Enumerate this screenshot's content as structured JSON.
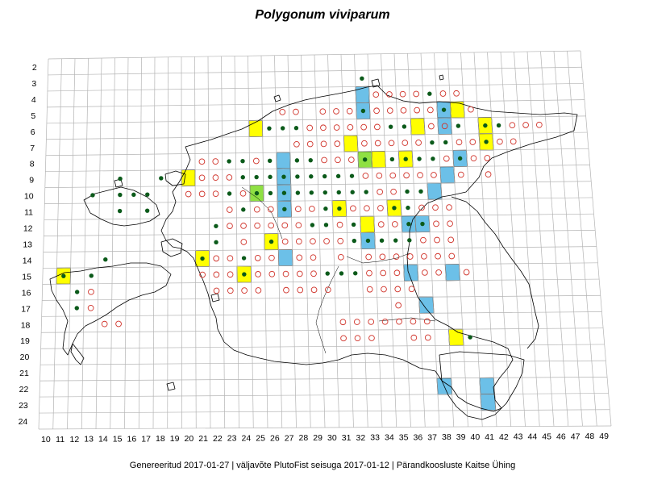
{
  "title": "Polygonum viviparum",
  "footer": "Genereeritud 2017-01-27  |  väljavõte PlutoFist seisuga 2017-01-12  |  Pärandkoosluste Kaitse Ühing",
  "colors": {
    "grid": "#b4b4b4",
    "yellow_cell": "#ffff00",
    "blue_cell": "#6cc0e8",
    "green_cell": "#8fe043",
    "filled_dot": "#0b5a1a",
    "open_circle": "#d0332a",
    "coast": "#000000"
  },
  "legend_meaning": {
    "filled_dot": "recorded",
    "open_circle": "other record"
  },
  "grid_labels": {
    "rows": [
      "2",
      "3",
      "4",
      "5",
      "6",
      "7",
      "8",
      "9",
      "10",
      "11",
      "12",
      "13",
      "14",
      "15",
      "16",
      "17",
      "18",
      "19",
      "20",
      "21",
      "22",
      "23",
      "24"
    ],
    "cols": [
      "10",
      "11",
      "12",
      "13",
      "14",
      "15",
      "16",
      "17",
      "18",
      "19",
      "20",
      "21",
      "22",
      "23",
      "24",
      "25",
      "26",
      "27",
      "28",
      "29",
      "30",
      "31",
      "32",
      "33",
      "34",
      "35",
      "36",
      "37",
      "38",
      "39",
      "40",
      "41",
      "42",
      "43",
      "44",
      "45",
      "46",
      "47",
      "48",
      "49"
    ]
  },
  "cells": {
    "yellow": [
      [
        40,
        5
      ],
      [
        25,
        6
      ],
      [
        37,
        6
      ],
      [
        42,
        6
      ],
      [
        42,
        7
      ],
      [
        32,
        7
      ],
      [
        34,
        8
      ],
      [
        36,
        8
      ],
      [
        20,
        9
      ],
      [
        31,
        11
      ],
      [
        35,
        11
      ],
      [
        33,
        12
      ],
      [
        26,
        13
      ],
      [
        21,
        14
      ],
      [
        11,
        15
      ],
      [
        24,
        15
      ],
      [
        39,
        19
      ]
    ],
    "blue": [
      [
        33,
        4
      ],
      [
        39,
        5
      ],
      [
        33,
        5
      ],
      [
        39,
        6
      ],
      [
        27,
        8
      ],
      [
        40,
        8
      ],
      [
        27,
        9
      ],
      [
        39,
        9
      ],
      [
        27,
        10
      ],
      [
        38,
        10
      ],
      [
        27,
        11
      ],
      [
        36,
        12
      ],
      [
        37,
        12
      ],
      [
        33,
        13
      ],
      [
        27,
        14
      ],
      [
        36,
        15
      ],
      [
        39,
        15
      ],
      [
        37,
        17
      ],
      [
        38,
        22
      ],
      [
        41,
        22
      ],
      [
        41,
        23
      ]
    ],
    "green": [
      [
        33,
        8
      ],
      [
        25,
        10
      ]
    ]
  },
  "filled_dots": [
    [
      33,
      3
    ],
    [
      38,
      4
    ],
    [
      33,
      5
    ],
    [
      39,
      5
    ],
    [
      28,
      6
    ],
    [
      40,
      6
    ],
    [
      42,
      6
    ],
    [
      43,
      6
    ],
    [
      35,
      6
    ],
    [
      36,
      6
    ],
    [
      26,
      6
    ],
    [
      27,
      6
    ],
    [
      42,
      7
    ],
    [
      38,
      7
    ],
    [
      39,
      7
    ],
    [
      23,
      8
    ],
    [
      24,
      8
    ],
    [
      26,
      8
    ],
    [
      28,
      8
    ],
    [
      29,
      8
    ],
    [
      33,
      8
    ],
    [
      35,
      8
    ],
    [
      36,
      8
    ],
    [
      37,
      8
    ],
    [
      38,
      8
    ],
    [
      40,
      8
    ],
    [
      15,
      9
    ],
    [
      18,
      9
    ],
    [
      24,
      9
    ],
    [
      25,
      9
    ],
    [
      26,
      9
    ],
    [
      27,
      9
    ],
    [
      28,
      9
    ],
    [
      29,
      9
    ],
    [
      30,
      9
    ],
    [
      31,
      9
    ],
    [
      32,
      9
    ],
    [
      13,
      10
    ],
    [
      15,
      10
    ],
    [
      16,
      10
    ],
    [
      17,
      10
    ],
    [
      23,
      10
    ],
    [
      25,
      10
    ],
    [
      26,
      10
    ],
    [
      27,
      10
    ],
    [
      28,
      10
    ],
    [
      29,
      10
    ],
    [
      30,
      10
    ],
    [
      31,
      10
    ],
    [
      32,
      10
    ],
    [
      33,
      10
    ],
    [
      36,
      10
    ],
    [
      37,
      10
    ],
    [
      15,
      11
    ],
    [
      17,
      11
    ],
    [
      24,
      11
    ],
    [
      27,
      11
    ],
    [
      30,
      11
    ],
    [
      31,
      11
    ],
    [
      35,
      11
    ],
    [
      36,
      11
    ],
    [
      22,
      12
    ],
    [
      29,
      12
    ],
    [
      30,
      12
    ],
    [
      32,
      12
    ],
    [
      36,
      12
    ],
    [
      37,
      12
    ],
    [
      22,
      13
    ],
    [
      26,
      13
    ],
    [
      32,
      13
    ],
    [
      33,
      13
    ],
    [
      34,
      13
    ],
    [
      35,
      13
    ],
    [
      36,
      13
    ],
    [
      21,
      14
    ],
    [
      14,
      14
    ],
    [
      24,
      14
    ],
    [
      11,
      15
    ],
    [
      13,
      15
    ],
    [
      24,
      15
    ],
    [
      30,
      15
    ],
    [
      31,
      15
    ],
    [
      32,
      15
    ],
    [
      12,
      16
    ],
    [
      12,
      17
    ],
    [
      40,
      19
    ]
  ],
  "open_circles": [
    [
      41,
      5
    ],
    [
      27,
      5
    ],
    [
      28,
      5
    ],
    [
      38,
      5
    ],
    [
      39,
      4
    ],
    [
      40,
      4
    ],
    [
      37,
      4
    ],
    [
      34,
      4
    ],
    [
      35,
      4
    ],
    [
      36,
      4
    ],
    [
      30,
      5
    ],
    [
      31,
      5
    ],
    [
      32,
      5
    ],
    [
      34,
      5
    ],
    [
      35,
      5
    ],
    [
      36,
      5
    ],
    [
      37,
      5
    ],
    [
      29,
      6
    ],
    [
      30,
      6
    ],
    [
      31,
      6
    ],
    [
      32,
      6
    ],
    [
      33,
      6
    ],
    [
      34,
      6
    ],
    [
      38,
      6
    ],
    [
      39,
      6
    ],
    [
      44,
      6
    ],
    [
      45,
      6
    ],
    [
      46,
      6
    ],
    [
      28,
      7
    ],
    [
      29,
      7
    ],
    [
      30,
      7
    ],
    [
      31,
      7
    ],
    [
      33,
      7
    ],
    [
      34,
      7
    ],
    [
      35,
      7
    ],
    [
      36,
      7
    ],
    [
      37,
      7
    ],
    [
      40,
      7
    ],
    [
      41,
      7
    ],
    [
      43,
      7
    ],
    [
      44,
      7
    ],
    [
      21,
      8
    ],
    [
      22,
      8
    ],
    [
      25,
      8
    ],
    [
      30,
      8
    ],
    [
      31,
      8
    ],
    [
      32,
      8
    ],
    [
      39,
      8
    ],
    [
      41,
      8
    ],
    [
      42,
      8
    ],
    [
      21,
      9
    ],
    [
      22,
      9
    ],
    [
      23,
      9
    ],
    [
      33,
      9
    ],
    [
      34,
      9
    ],
    [
      35,
      9
    ],
    [
      36,
      9
    ],
    [
      37,
      9
    ],
    [
      38,
      9
    ],
    [
      40,
      9
    ],
    [
      42,
      9
    ],
    [
      20,
      10
    ],
    [
      21,
      10
    ],
    [
      22,
      10
    ],
    [
      24,
      10
    ],
    [
      34,
      10
    ],
    [
      35,
      10
    ],
    [
      23,
      11
    ],
    [
      25,
      11
    ],
    [
      26,
      11
    ],
    [
      28,
      11
    ],
    [
      29,
      11
    ],
    [
      32,
      11
    ],
    [
      33,
      11
    ],
    [
      34,
      11
    ],
    [
      37,
      11
    ],
    [
      38,
      11
    ],
    [
      39,
      11
    ],
    [
      23,
      12
    ],
    [
      24,
      12
    ],
    [
      25,
      12
    ],
    [
      26,
      12
    ],
    [
      27,
      12
    ],
    [
      28,
      12
    ],
    [
      31,
      12
    ],
    [
      34,
      12
    ],
    [
      35,
      12
    ],
    [
      38,
      12
    ],
    [
      39,
      12
    ],
    [
      24,
      13
    ],
    [
      27,
      13
    ],
    [
      28,
      13
    ],
    [
      29,
      13
    ],
    [
      30,
      13
    ],
    [
      31,
      13
    ],
    [
      37,
      13
    ],
    [
      38,
      13
    ],
    [
      39,
      13
    ],
    [
      22,
      14
    ],
    [
      23,
      14
    ],
    [
      25,
      14
    ],
    [
      26,
      14
    ],
    [
      28,
      14
    ],
    [
      29,
      14
    ],
    [
      31,
      14
    ],
    [
      33,
      14
    ],
    [
      34,
      14
    ],
    [
      35,
      14
    ],
    [
      36,
      14
    ],
    [
      37,
      14
    ],
    [
      38,
      14
    ],
    [
      39,
      14
    ],
    [
      21,
      15
    ],
    [
      22,
      15
    ],
    [
      23,
      15
    ],
    [
      25,
      15
    ],
    [
      26,
      15
    ],
    [
      27,
      15
    ],
    [
      28,
      15
    ],
    [
      29,
      15
    ],
    [
      33,
      15
    ],
    [
      34,
      15
    ],
    [
      35,
      15
    ],
    [
      37,
      15
    ],
    [
      38,
      15
    ],
    [
      40,
      15
    ],
    [
      13,
      16
    ],
    [
      22,
      16
    ],
    [
      23,
      16
    ],
    [
      24,
      16
    ],
    [
      25,
      16
    ],
    [
      27,
      16
    ],
    [
      28,
      16
    ],
    [
      29,
      16
    ],
    [
      30,
      16
    ],
    [
      33,
      16
    ],
    [
      34,
      16
    ],
    [
      35,
      16
    ],
    [
      36,
      16
    ],
    [
      13,
      17
    ],
    [
      35,
      17
    ],
    [
      14,
      18
    ],
    [
      15,
      18
    ],
    [
      31,
      18
    ],
    [
      32,
      18
    ],
    [
      33,
      18
    ],
    [
      34,
      18
    ],
    [
      35,
      18
    ],
    [
      36,
      18
    ],
    [
      37,
      18
    ],
    [
      31,
      19
    ],
    [
      32,
      19
    ],
    [
      33,
      19
    ],
    [
      36,
      19
    ],
    [
      37,
      19
    ]
  ]
}
